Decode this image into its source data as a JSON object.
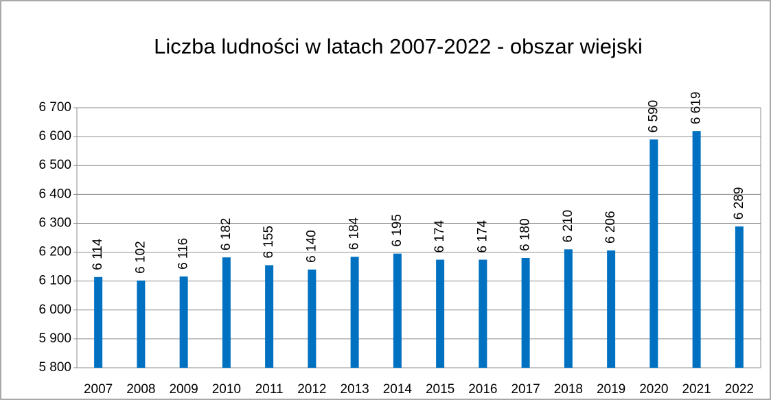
{
  "chart_data": {
    "type": "bar",
    "title": "Liczba ludności w latach 2007-2022 - obszar wiejski",
    "categories": [
      "2007",
      "2008",
      "2009",
      "2010",
      "2011",
      "2012",
      "2013",
      "2014",
      "2015",
      "2016",
      "2017",
      "2018",
      "2019",
      "2020",
      "2021",
      "2022"
    ],
    "values": [
      6114,
      6102,
      6116,
      6182,
      6155,
      6140,
      6184,
      6195,
      6174,
      6174,
      6180,
      6210,
      6206,
      6590,
      6619,
      6289
    ],
    "value_labels": [
      "6 114",
      "6 102",
      "6 116",
      "6 182",
      "6 155",
      "6 140",
      "6 184",
      "6 195",
      "6 174",
      "6 174",
      "6 180",
      "6 210",
      "6 206",
      "6 590",
      "6 619",
      "6 289"
    ],
    "color": "#0070c0",
    "ylim": [
      5800,
      6700
    ],
    "yticks": [
      {
        "value": 5800,
        "label": "5 800"
      },
      {
        "value": 5900,
        "label": "5 900"
      },
      {
        "value": 6000,
        "label": "6 000"
      },
      {
        "value": 6100,
        "label": "6 100"
      },
      {
        "value": 6200,
        "label": "6 200"
      },
      {
        "value": 6300,
        "label": "6 300"
      },
      {
        "value": 6400,
        "label": "6 400"
      },
      {
        "value": 6500,
        "label": "6 500"
      },
      {
        "value": 6600,
        "label": "6 600"
      },
      {
        "value": 6700,
        "label": "6 700"
      }
    ],
    "grid": true
  }
}
